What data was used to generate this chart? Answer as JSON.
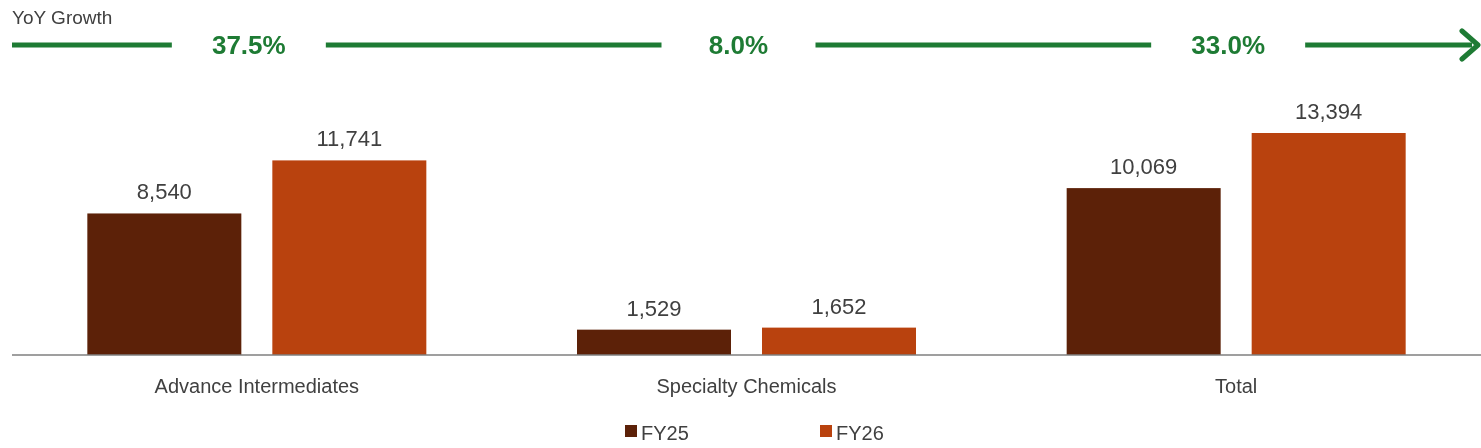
{
  "chart_data": {
    "type": "bar",
    "categories": [
      "Advance Intermediates",
      "Specialty Chemicals",
      "Total"
    ],
    "series": [
      {
        "name": "FY25",
        "color": "#5c2108",
        "values": [
          8540,
          1529,
          10069
        ],
        "value_labels": [
          "8,540",
          "1,529",
          "10,069"
        ]
      },
      {
        "name": "FY26",
        "color": "#b9420e",
        "values": [
          11741,
          1652,
          13394
        ],
        "value_labels": [
          "11,741",
          "1,652",
          "13,394"
        ]
      }
    ],
    "legend": "bottom",
    "annotations": [
      "YoY Growth",
      "37.5%",
      "8.0%",
      "33.0%"
    ]
  }
}
